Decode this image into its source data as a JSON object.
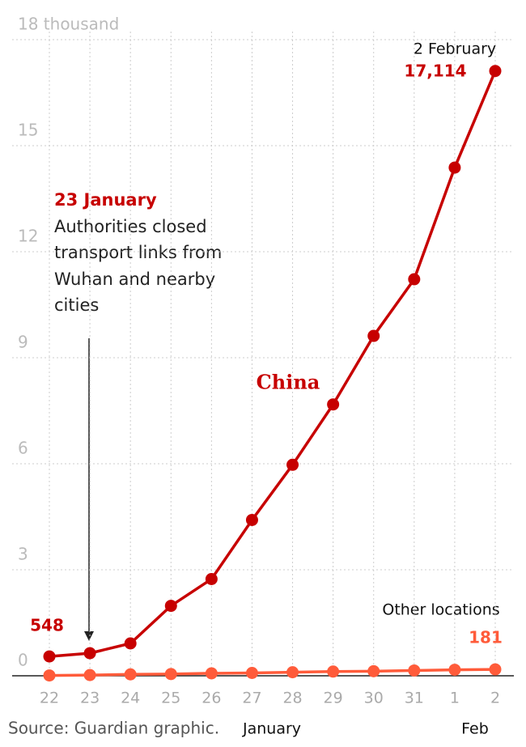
{
  "chart_data": {
    "type": "line",
    "x": [
      "22",
      "23",
      "24",
      "25",
      "26",
      "27",
      "28",
      "29",
      "30",
      "31",
      "1",
      "2"
    ],
    "x_group_labels": [
      "January",
      "Feb"
    ],
    "ylim": [
      0,
      18
    ],
    "yticks": [
      0,
      3,
      6,
      9,
      12,
      15,
      {
        "value": 18,
        "label": "18 thousand"
      }
    ],
    "grid": true,
    "series": [
      {
        "name": "China",
        "color": "#c70000",
        "values": [
          0.548,
          0.639,
          0.916,
          1.979,
          2.737,
          4.409,
          5.97,
          7.678,
          9.618,
          11.221,
          14.38,
          17.114
        ],
        "value_labels": [
          "548",
          null,
          null,
          null,
          null,
          null,
          null,
          null,
          null,
          null,
          null,
          "17,114"
        ]
      },
      {
        "name": "Other locations",
        "color": "#ff5b3a",
        "values": [
          0.01,
          0.02,
          0.04,
          0.05,
          0.07,
          0.08,
          0.1,
          0.12,
          0.13,
          0.15,
          0.17,
          0.181
        ],
        "value_labels": [
          null,
          null,
          null,
          null,
          null,
          null,
          null,
          null,
          null,
          null,
          null,
          "181"
        ]
      }
    ],
    "annotations": [
      {
        "title": "23 January",
        "lines": [
          "Authorities closed",
          "transport links from",
          "Wuhan and nearby",
          "cities"
        ]
      },
      {
        "title": "2 February"
      }
    ],
    "source": "Source:  Guardian graphic."
  }
}
